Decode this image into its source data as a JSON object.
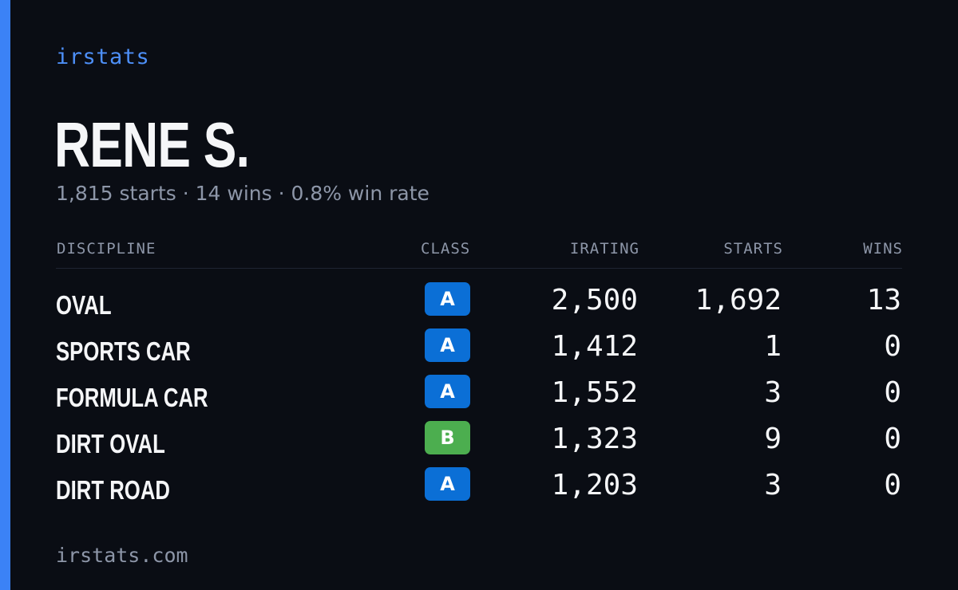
{
  "brand": "irstats",
  "driver": {
    "name": "RENE S.",
    "summary": "1,815 starts · 14 wins · 0.8% win rate"
  },
  "table": {
    "headers": {
      "discipline": "DISCIPLINE",
      "class": "CLASS",
      "irating": "IRATING",
      "starts": "STARTS",
      "wins": "WINS"
    },
    "rows": [
      {
        "discipline": "OVAL",
        "class": "A",
        "irating": "2,500",
        "starts": "1,692",
        "wins": "13"
      },
      {
        "discipline": "SPORTS CAR",
        "class": "A",
        "irating": "1,412",
        "starts": "1",
        "wins": "0"
      },
      {
        "discipline": "FORMULA CAR",
        "class": "A",
        "irating": "1,552",
        "starts": "3",
        "wins": "0"
      },
      {
        "discipline": "DIRT OVAL",
        "class": "B",
        "irating": "1,323",
        "starts": "9",
        "wins": "0"
      },
      {
        "discipline": "DIRT ROAD",
        "class": "A",
        "irating": "1,203",
        "starts": "3",
        "wins": "0"
      }
    ]
  },
  "class_colors": {
    "A": "#0b6fd6",
    "B": "#4cae4f"
  },
  "colors": {
    "accent": "#3b82f6",
    "background": "#0a0d14"
  },
  "footer": "irstats.com"
}
